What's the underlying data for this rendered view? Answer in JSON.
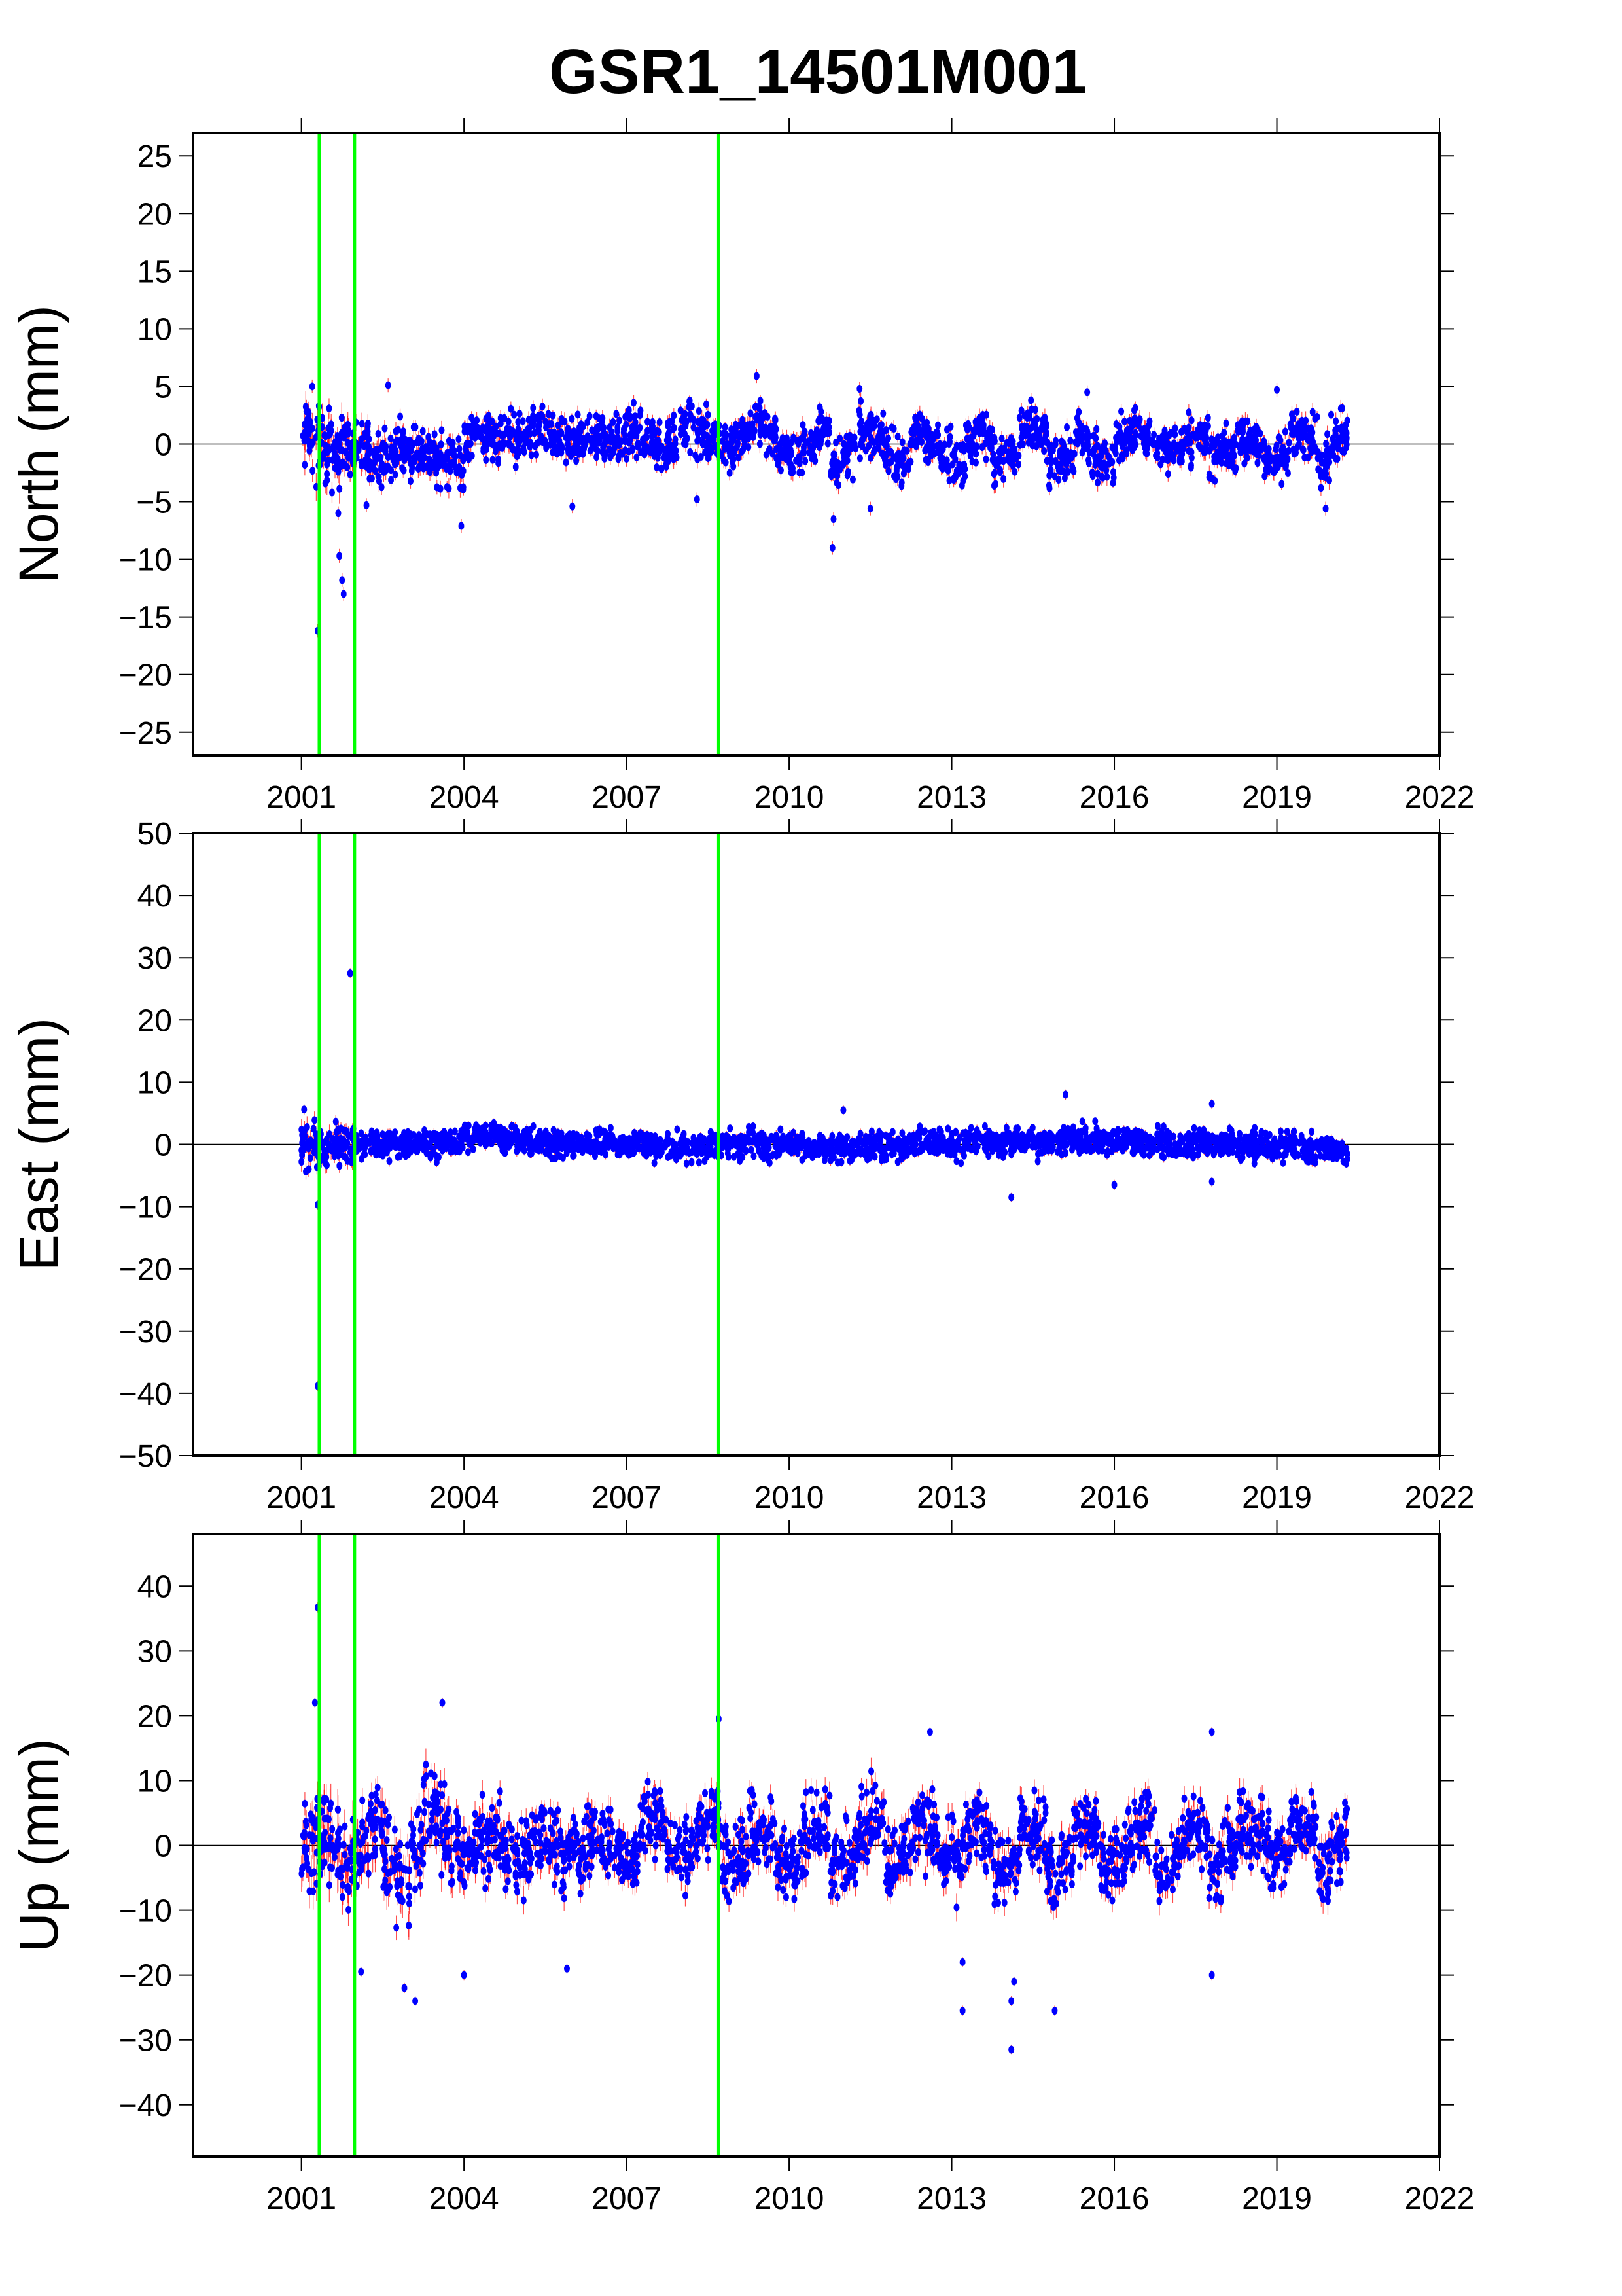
{
  "chart_data": {
    "type": "scatter",
    "title": "GSR1_14501M001",
    "xlim": [
      1999,
      2022
    ],
    "x_ticks": [
      2001,
      2004,
      2007,
      2010,
      2013,
      2016,
      2019,
      2022
    ],
    "x_tick_labels": [
      "2001",
      "2004",
      "2007",
      "2010",
      "2013",
      "2016",
      "2019",
      "2022"
    ],
    "event_lines": [
      2001.33,
      2001.98,
      2008.7
    ],
    "colors": {
      "points": "#0000ff",
      "error_bars": "#ff0000",
      "event_lines": "#00ff00",
      "zero_line": "#000000"
    },
    "bins_start": 2001.0,
    "bin_width_years": 0.25,
    "panels": [
      {
        "name": "north",
        "ylabel": "North (mm)",
        "ylim": [
          -27,
          27
        ],
        "y_ticks": [
          -25,
          -20,
          -15,
          -10,
          -5,
          0,
          5,
          10,
          15,
          20,
          25
        ],
        "y_tick_labels": [
          "−25",
          "−20",
          "−15",
          "−10",
          "−5",
          "0",
          "5",
          "10",
          "15",
          "20",
          "25"
        ],
        "bin_centers": [
          0.5,
          0,
          -0.5,
          -0.5,
          -0.5,
          -1,
          -1,
          -0.5,
          -0.5,
          -1,
          -1.5,
          -1.5,
          0.5,
          1,
          0.5,
          0.5,
          0.5,
          1,
          0.5,
          0,
          0.5,
          1,
          0.5,
          0.5,
          1,
          0.5,
          -0.5,
          0.5,
          1.5,
          1,
          0.5,
          0,
          0.5,
          2,
          1,
          -0.5,
          -1,
          0,
          1,
          -1.5,
          -1,
          1,
          1,
          -1,
          -1.5,
          1,
          0.5,
          -1,
          -1.5,
          0.5,
          1,
          -1.5,
          -1,
          1,
          1,
          -1.5,
          -1,
          0.5,
          -1,
          -1.5,
          0.5,
          1,
          0.5,
          -0.5,
          -0.5,
          0.5,
          0.5,
          -1,
          -0.5,
          0.5,
          0,
          -1,
          -1,
          1,
          0.5,
          -1.5,
          0.5,
          0.5
        ],
        "bin_spreads": [
          3,
          3,
          3,
          2.5,
          2.2,
          2.2,
          2,
          2,
          2,
          2,
          2,
          2,
          1.8,
          1.8,
          1.8,
          1.8,
          1.8,
          1.8,
          1.8,
          1.8,
          1.8,
          1.8,
          1.8,
          1.8,
          1.8,
          1.8,
          1.8,
          1.8,
          1.8,
          1.8,
          1.8,
          1.8,
          1.8,
          1.8,
          1.8,
          1.8,
          1.8,
          1.8,
          1.8,
          1.8,
          1.8,
          1.8,
          1.8,
          1.8,
          1.8,
          1.8,
          1.8,
          1.8,
          1.8,
          1.8,
          1.8,
          1.8,
          1.8,
          1.8,
          1.8,
          1.8,
          1.8,
          1.8,
          1.8,
          1.8,
          1.8,
          1.8,
          1.8,
          1.8,
          1.8,
          1.8,
          1.8,
          1.8,
          1.8,
          1.8,
          1.8,
          1.8,
          1.8,
          1.8,
          1.8,
          1.8,
          1.8,
          1.8
        ],
        "outliers": [
          [
            2001.2,
            5
          ],
          [
            2001.3,
            -16.2
          ],
          [
            2001.68,
            -6
          ],
          [
            2001.7,
            -9.7
          ],
          [
            2001.75,
            -11.8
          ],
          [
            2001.78,
            -13
          ],
          [
            2002.2,
            -5.3
          ],
          [
            2002.6,
            5.1
          ],
          [
            2003.95,
            -7.1
          ],
          [
            2006.0,
            -5.4
          ],
          [
            2008.3,
            -4.8
          ],
          [
            2009.4,
            5.9
          ],
          [
            2010.8,
            -9
          ],
          [
            2010.82,
            -6.5
          ],
          [
            2011.3,
            4.8
          ],
          [
            2011.5,
            -5.6
          ],
          [
            2015.5,
            4.5
          ],
          [
            2019.0,
            4.7
          ],
          [
            2019.9,
            -5.6
          ]
        ]
      },
      {
        "name": "east",
        "ylabel": "East (mm)",
        "ylim": [
          -50,
          50
        ],
        "y_ticks": [
          -50,
          -40,
          -30,
          -20,
          -10,
          0,
          10,
          20,
          30,
          40,
          50
        ],
        "y_tick_labels": [
          "−50",
          "−40",
          "−30",
          "−20",
          "−10",
          "0",
          "10",
          "20",
          "30",
          "40",
          "50"
        ],
        "bin_centers": [
          0,
          -1,
          0,
          0.5,
          0,
          0,
          0,
          0,
          0,
          0,
          0.5,
          0.5,
          1,
          1,
          1.5,
          0.5,
          0.5,
          0.5,
          0,
          0,
          0,
          0.5,
          0,
          0,
          0.5,
          0,
          -0.5,
          -0.5,
          -0.5,
          -0.5,
          0,
          0,
          0,
          0.5,
          -0.5,
          0,
          0,
          -0.5,
          -0.5,
          -0.5,
          -0.5,
          -0.5,
          0,
          -0.5,
          0,
          0.5,
          0.5,
          0,
          0,
          0.5,
          0.5,
          0,
          0.5,
          0.5,
          0,
          0.5,
          1,
          1,
          1,
          0.5,
          0.5,
          0.5,
          0,
          0.5,
          0,
          0,
          0.5,
          0,
          0.5,
          0,
          0,
          -0.5,
          -0.5,
          0,
          -1,
          -0.5,
          -1,
          -1
        ],
        "bin_spreads": [
          4,
          3.5,
          3.5,
          3,
          2,
          2,
          2,
          2,
          2,
          2,
          2,
          2,
          2,
          2,
          2,
          2,
          2,
          2,
          2,
          2,
          2,
          2,
          2,
          2,
          2,
          2,
          2,
          2,
          2,
          2,
          2,
          2,
          2,
          2,
          2,
          2,
          2,
          2,
          2,
          2,
          2,
          2,
          2,
          2,
          2,
          2,
          2,
          2,
          2,
          2,
          2,
          2,
          2,
          2,
          2,
          2,
          2,
          2,
          2,
          2,
          2,
          2,
          2,
          2,
          2,
          2,
          2,
          2,
          2,
          2,
          2,
          2,
          2,
          2,
          2,
          2,
          2,
          2
        ],
        "outliers": [
          [
            2001.3,
            -38.8
          ],
          [
            2001.3,
            -9.7
          ],
          [
            2001.05,
            5.6
          ],
          [
            2001.9,
            27.5
          ],
          [
            2011.0,
            5.5
          ],
          [
            2014.1,
            -8.5
          ],
          [
            2015.1,
            8
          ],
          [
            2016.0,
            -6.5
          ],
          [
            2017.8,
            6.5
          ],
          [
            2017.8,
            -6.0
          ]
        ]
      },
      {
        "name": "up",
        "ylabel": "Up (mm)",
        "ylim": [
          -48,
          48
        ],
        "y_ticks": [
          -40,
          -30,
          -20,
          -10,
          0,
          10,
          20,
          30,
          40
        ],
        "y_tick_labels": [
          "−40",
          "−30",
          "−20",
          "−10",
          "0",
          "10",
          "20",
          "30",
          "40"
        ],
        "bin_centers": [
          1,
          2,
          0,
          -3,
          0,
          4,
          -2,
          -6,
          0,
          5,
          3,
          -1,
          -2,
          1,
          2,
          -2,
          -2,
          2,
          1,
          -2,
          -1,
          2,
          1,
          -1,
          -2,
          3,
          3,
          -1,
          -1,
          3,
          3,
          -3,
          -2,
          2,
          2,
          -3,
          -2,
          2,
          3,
          -3,
          -2,
          3,
          4,
          -2,
          -1,
          4,
          2,
          -3,
          -2,
          2,
          2,
          -4,
          -3,
          2,
          3,
          -4,
          -2,
          3,
          2,
          -4,
          -2,
          2,
          3,
          -4,
          -2,
          3,
          3,
          -3,
          -1,
          3,
          3,
          -2,
          -1,
          3,
          3,
          -3,
          0,
          1
        ],
        "bin_spreads": [
          7,
          7,
          7,
          7,
          6,
          6,
          6,
          6,
          6,
          6,
          6,
          6,
          5,
          5,
          5,
          5,
          5,
          5,
          5,
          5,
          5,
          5,
          5,
          5,
          5,
          5,
          5,
          5,
          5,
          5,
          5,
          5,
          5,
          5,
          5,
          5,
          5,
          5,
          5,
          5,
          5,
          5,
          5,
          5,
          5,
          5,
          5,
          5,
          5,
          5,
          5,
          5,
          5,
          5,
          5,
          5,
          5,
          5,
          5,
          5,
          5,
          5,
          5,
          5,
          5,
          5,
          5,
          5,
          5,
          5,
          5,
          5,
          5,
          5,
          5,
          5,
          5,
          5
        ],
        "outliers": [
          [
            2001.3,
            36.7
          ],
          [
            2001.25,
            22
          ],
          [
            2003.6,
            22
          ],
          [
            2002.1,
            -19.5
          ],
          [
            2002.9,
            -22
          ],
          [
            2003.1,
            -24
          ],
          [
            2008.7,
            19.5
          ],
          [
            2013.2,
            -25.5
          ],
          [
            2013.2,
            -18
          ],
          [
            2014.1,
            -31.5
          ],
          [
            2014.1,
            -24
          ],
          [
            2014.15,
            -21
          ],
          [
            2014.9,
            -25.5
          ],
          [
            2017.8,
            -20
          ],
          [
            2017.8,
            17.5
          ],
          [
            2012.6,
            17.5
          ],
          [
            2004.0,
            -20
          ],
          [
            2005.9,
            -19
          ]
        ]
      }
    ]
  }
}
